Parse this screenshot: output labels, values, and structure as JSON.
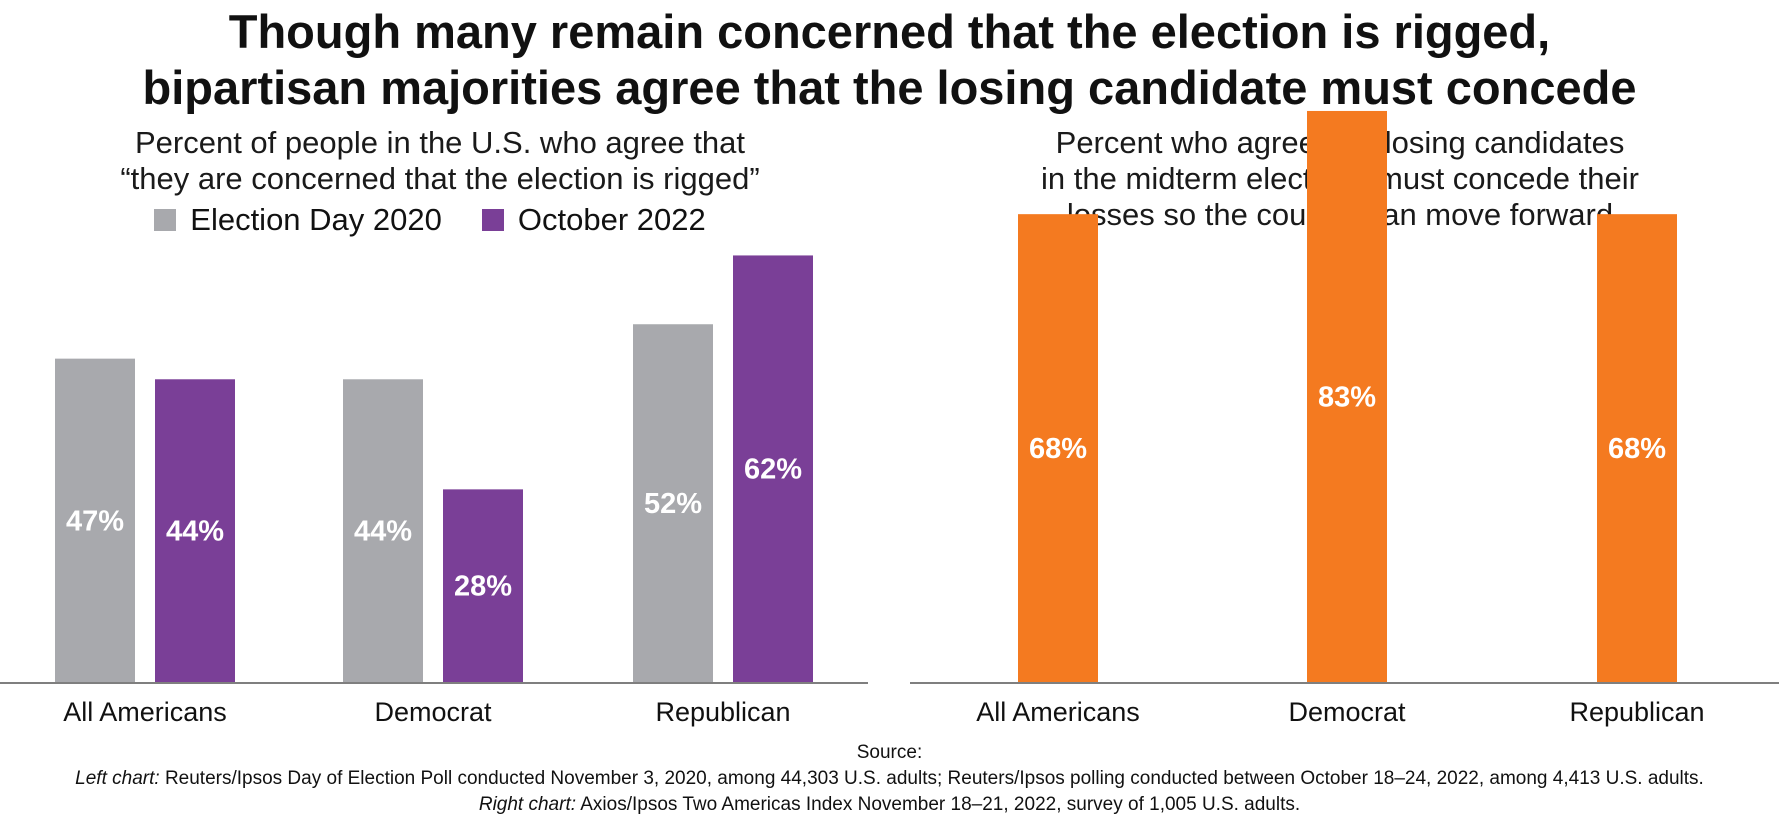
{
  "title_line1": "Though many remain concerned that the election is rigged,",
  "title_line2": "bipartisan majorities agree that the losing candidate must concede",
  "chart_data": [
    {
      "type": "bar",
      "title_line1": "Percent of people in the U.S. who agree that",
      "title_line2": "“they are concerned that the election is rigged”",
      "categories": [
        "All Americans",
        "Democrat",
        "Republican"
      ],
      "series": [
        {
          "name": "Election Day 2020",
          "color": "#a8a9ad",
          "values": [
            47,
            44,
            52
          ],
          "labels": [
            "47%",
            "44%",
            "52%"
          ]
        },
        {
          "name": "October 2022",
          "color": "#7a3f97",
          "values": [
            44,
            28,
            62
          ],
          "labels": [
            "44%",
            "28%",
            "62%"
          ]
        }
      ],
      "legend": "top-center",
      "ylim": [
        0,
        65
      ],
      "xlabel": "",
      "ylabel": ""
    },
    {
      "type": "bar",
      "title_line1": "Percent who agree that losing candidates",
      "title_line2": "in the midterm elections must concede their",
      "title_line3": "losses so the country can move forward",
      "categories": [
        "All Americans",
        "Democrat",
        "Republican"
      ],
      "series": [
        {
          "name": "Agree",
          "color": "#f47a20",
          "values": [
            68,
            83,
            68
          ],
          "labels": [
            "68%",
            "83%",
            "68%"
          ]
        }
      ],
      "ylim": [
        0,
        85
      ],
      "xlabel": "",
      "ylabel": ""
    }
  ],
  "source": {
    "heading": "Source:",
    "left_prefix": "Left chart:",
    "left_text": "Reuters/Ipsos Day of Election Poll conducted November 3, 2020, among 44,303 U.S. adults; Reuters/Ipsos polling conducted between October 18–24, 2022, among 4,413 U.S. adults.",
    "right_prefix": "Right chart:",
    "right_text": "Axios/Ipsos Two Americas Index November 18–21, 2022, survey of 1,005 U.S. adults."
  }
}
